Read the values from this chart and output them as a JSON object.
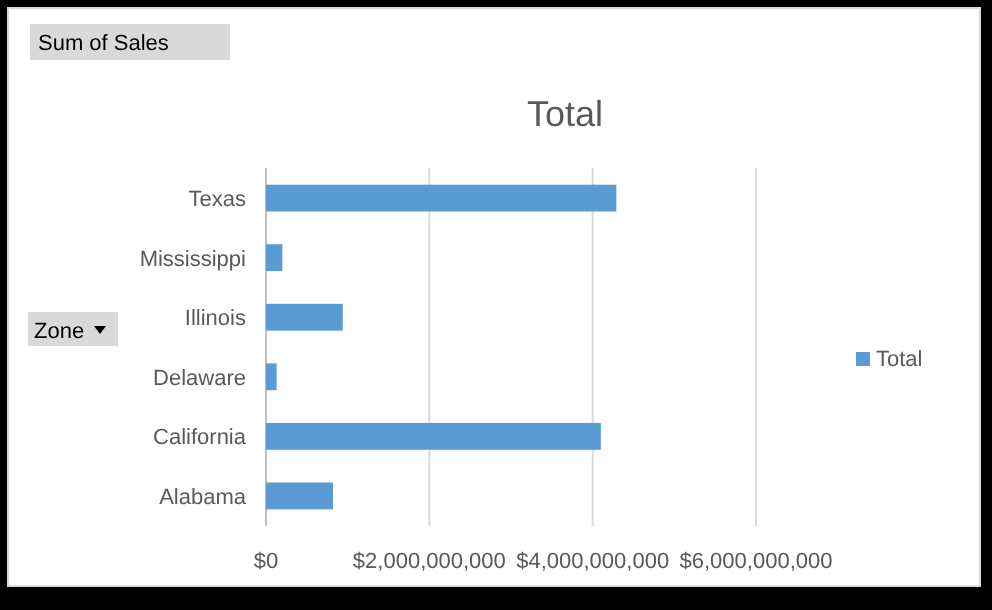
{
  "chart_data": {
    "type": "bar",
    "orientation": "horizontal",
    "title": "Total",
    "ylabel": "Zone",
    "annotations": [
      "Sum of Sales"
    ],
    "categories": [
      "Texas",
      "Mississippi",
      "Illinois",
      "Delaware",
      "California",
      "Alabama"
    ],
    "series": [
      {
        "name": "Total",
        "color": "#5b9bd5",
        "values": [
          4290000000,
          200000000,
          940000000,
          130000000,
          4100000000,
          820000000
        ]
      }
    ],
    "xlim": [
      0,
      6000000000
    ],
    "xticks": [
      {
        "value": 0,
        "label": "$0"
      },
      {
        "value": 2000000000,
        "label": "$2,000,000,000"
      },
      {
        "value": 4000000000,
        "label": "$4,000,000,000"
      },
      {
        "value": 6000000000,
        "label": "$6,000,000,000"
      }
    ],
    "grid": "x",
    "legend": "right"
  }
}
